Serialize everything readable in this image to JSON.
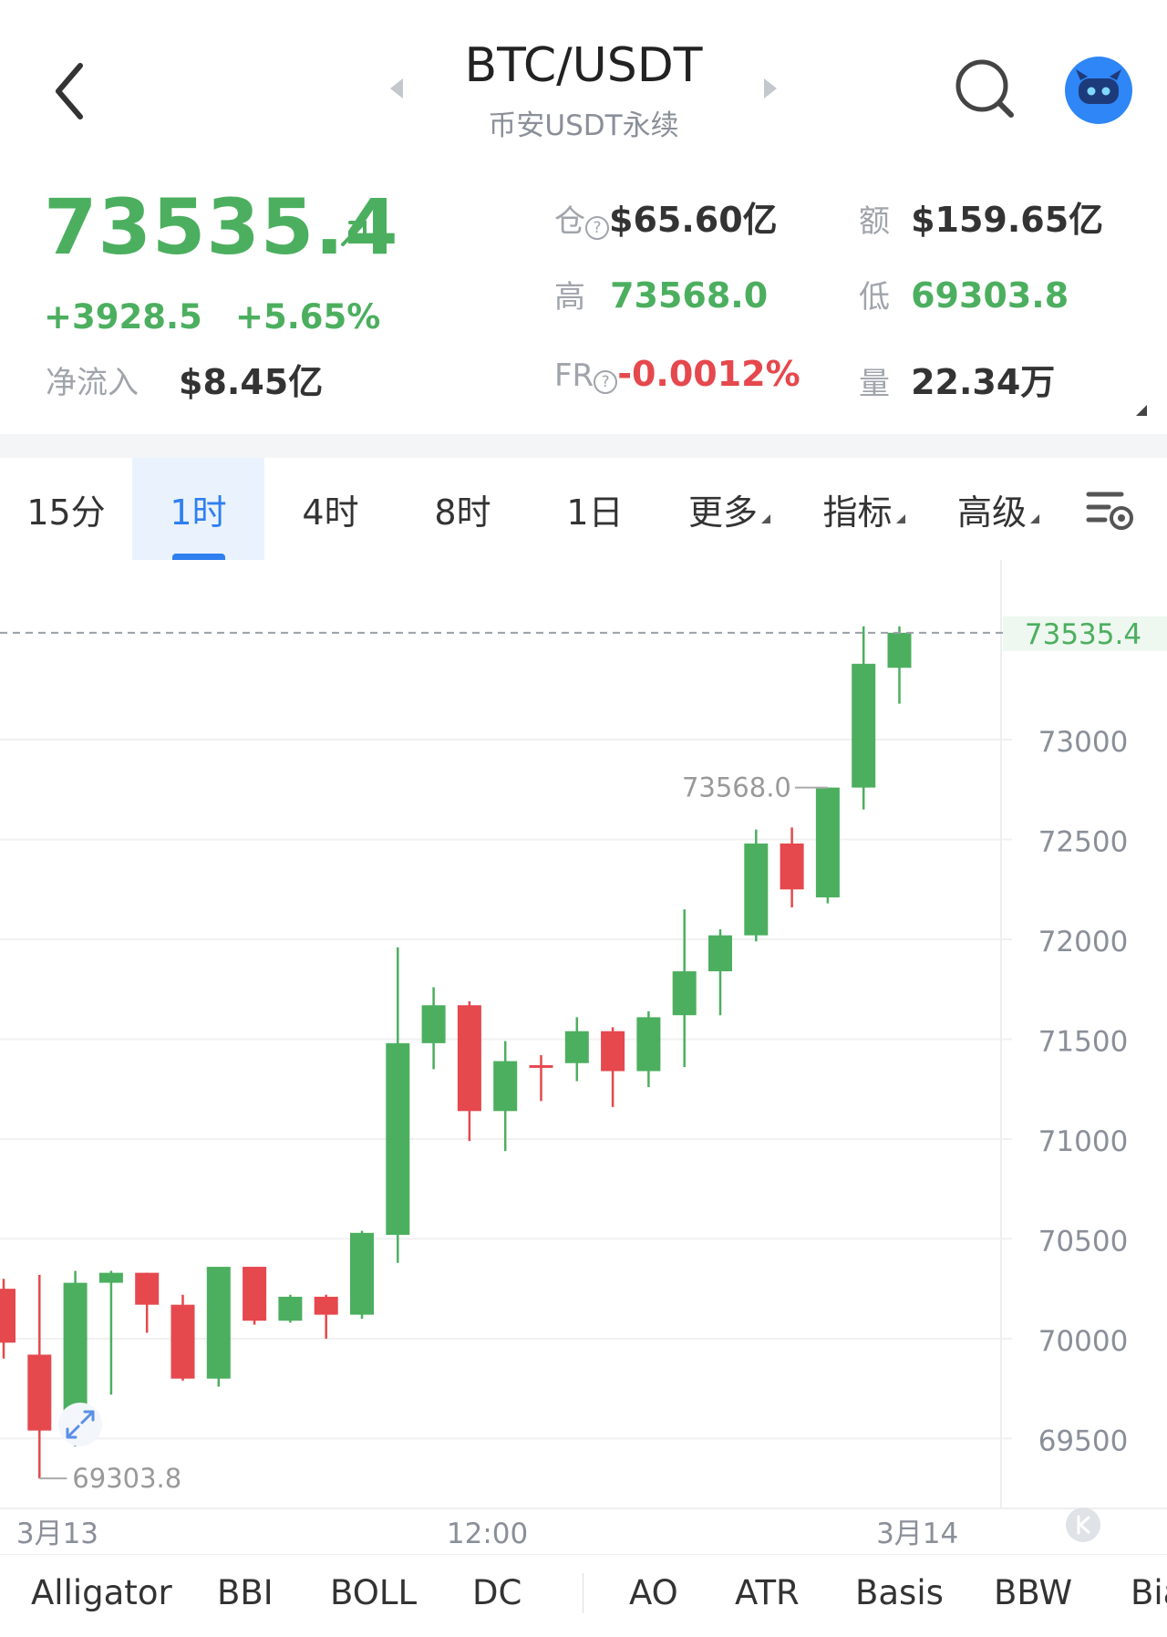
{
  "header": {
    "pair": "BTC/USDT",
    "market": "币安USDT永续"
  },
  "price": {
    "last": "73535.4",
    "change": "+3928.5",
    "change_pct": "+5.65%",
    "net_inflow_label": "净流入",
    "net_inflow": "$8.45亿"
  },
  "stats": {
    "oi_label": "仓",
    "oi_value": "$65.60亿",
    "turnover_label": "额",
    "turnover_value": "$159.65亿",
    "high_label": "高",
    "high_value": "73568.0",
    "low_label": "低",
    "low_value": "69303.8",
    "fr_label": "FR",
    "fr_value": "-0.0012%",
    "volume_label": "量",
    "volume_value": "22.34万"
  },
  "intervals": [
    {
      "label": "15分"
    },
    {
      "label": "1时",
      "active": true
    },
    {
      "label": "4时"
    },
    {
      "label": "8时"
    },
    {
      "label": "1日"
    },
    {
      "label": "更多",
      "caret": true
    },
    {
      "label": "指标",
      "caret": true
    },
    {
      "label": "高级",
      "caret": true
    }
  ],
  "indicators": [
    "Alligator",
    "BBI",
    "BOLL",
    "DC",
    "AO",
    "ATR",
    "Basis",
    "BBW",
    "Bia"
  ],
  "colors": {
    "up": "#4caf5f",
    "down": "#e5484d",
    "accent": "#2f7ff0"
  },
  "chart_data": {
    "type": "candlestick",
    "interval": "1时",
    "y_ticks": [
      69500,
      70000,
      70500,
      71000,
      71500,
      72000,
      72500,
      73000
    ],
    "ylim": [
      69150,
      73900
    ],
    "x_labels": [
      {
        "index": 1.5,
        "label": "3月13"
      },
      {
        "index": 13.5,
        "label": "12:00"
      },
      {
        "index": 25.5,
        "label": "3月14"
      }
    ],
    "last_price": 73535.4,
    "high_marker": {
      "index": 23,
      "label": "73568.0"
    },
    "low_marker": {
      "index": 0,
      "label": "69303.8"
    },
    "candles": [
      {
        "o": 70250,
        "h": 70300,
        "l": 69900,
        "c": 69980
      },
      {
        "o": 69920,
        "h": 70320,
        "l": 69300,
        "c": 69540
      },
      {
        "o": 69540,
        "h": 70340,
        "l": 69460,
        "c": 70280
      },
      {
        "o": 70280,
        "h": 70340,
        "l": 69720,
        "c": 70330
      },
      {
        "o": 70330,
        "h": 70330,
        "l": 70030,
        "c": 70170
      },
      {
        "o": 70170,
        "h": 70220,
        "l": 69790,
        "c": 69800
      },
      {
        "o": 69800,
        "h": 70320,
        "l": 69760,
        "c": 70360
      },
      {
        "o": 70360,
        "h": 70330,
        "l": 70070,
        "c": 70090
      },
      {
        "o": 70090,
        "h": 70220,
        "l": 70080,
        "c": 70210
      },
      {
        "o": 70210,
        "h": 70220,
        "l": 70000,
        "c": 70120
      },
      {
        "o": 70120,
        "h": 70540,
        "l": 70100,
        "c": 70530
      },
      {
        "o": 70520,
        "h": 71960,
        "l": 70380,
        "c": 71480
      },
      {
        "o": 71480,
        "h": 71760,
        "l": 71350,
        "c": 71670
      },
      {
        "o": 71670,
        "h": 71690,
        "l": 70990,
        "c": 71140
      },
      {
        "o": 71140,
        "h": 71490,
        "l": 70940,
        "c": 71390
      },
      {
        "o": 71370,
        "h": 71420,
        "l": 71190,
        "c": 71360
      },
      {
        "o": 71380,
        "h": 71610,
        "l": 71290,
        "c": 71540
      },
      {
        "o": 71540,
        "h": 71560,
        "l": 71160,
        "c": 71340
      },
      {
        "o": 71340,
        "h": 71640,
        "l": 71260,
        "c": 71610
      },
      {
        "o": 71620,
        "h": 72150,
        "l": 71360,
        "c": 71840
      },
      {
        "o": 71840,
        "h": 72050,
        "l": 71620,
        "c": 72020
      },
      {
        "o": 72020,
        "h": 72550,
        "l": 71990,
        "c": 72480
      },
      {
        "o": 72480,
        "h": 72560,
        "l": 72160,
        "c": 72250
      },
      {
        "o": 72210,
        "h": 72760,
        "l": 72180,
        "c": 72760
      },
      {
        "o": 72760,
        "h": 73568,
        "l": 72650,
        "c": 73380
      },
      {
        "o": 73360,
        "h": 73568,
        "l": 73180,
        "c": 73535.4
      }
    ]
  }
}
